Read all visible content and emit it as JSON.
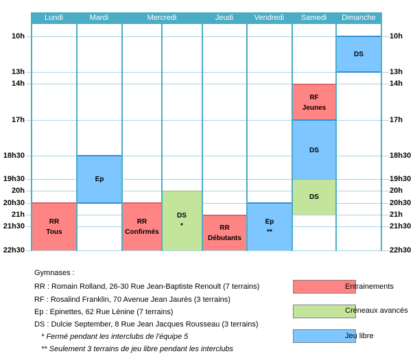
{
  "colors": {
    "header": "#4bacc6",
    "entrainements": "#ff8585",
    "creneaux": "#c3e59b",
    "jeu_libre": "#7dc6ff"
  },
  "days": [
    "Lundi",
    "Mardi",
    "Mercredi",
    "Jeudi",
    "Vendredi",
    "Samedi",
    "Dimanche"
  ],
  "times": [
    "10h",
    "13h",
    "14h",
    "17h",
    "18h30",
    "19h30",
    "20h",
    "20h30",
    "21h",
    "21h30",
    "22h30"
  ],
  "blocks": {
    "lundi_rr": {
      "line1": "RR",
      "line2": "Tous"
    },
    "mardi_ep": {
      "line1": "Ep"
    },
    "mercredi_rr": {
      "line1": "RR",
      "line2": "Confirmés"
    },
    "mercredi_ds": {
      "line1": "DS",
      "line2": "*"
    },
    "jeudi_rr": {
      "line1": "RR",
      "line2": "Débutants"
    },
    "vendredi_ep": {
      "line1": "Ep",
      "line2": "**"
    },
    "samedi_rf": {
      "line1": "RF",
      "line2": "Jeunes"
    },
    "samedi_ds_blue": {
      "line1": "DS"
    },
    "samedi_ds_green": {
      "line1": "DS"
    },
    "dimanche_ds": {
      "line1": "DS"
    }
  },
  "gymnases": {
    "title": "Gymnases :",
    "items": [
      "RR : Romain Rolland, 26-30 Rue Jean-Baptiste Renoult (7 terrains)",
      "RF : Rosalind Franklin, 70 Avenue Jean Jaurès (3 terrains)",
      "Ep : Epinettes, 62 Rue Lénine (7 terrains)",
      "DS : Dulcie September, 8 Rue Jean Jacques Rousseau (3 terrains)"
    ],
    "notes": [
      "* Fermé pendant les interclubs de l'équipe 5",
      "** Seulement 3 terrains de jeu libre pendant les interclubs"
    ]
  },
  "legend": [
    {
      "label": "Entrainements",
      "color": "#ff8585"
    },
    {
      "label": "Créneaux avancés",
      "color": "#c3e59b"
    },
    {
      "label": "Jeu libre",
      "color": "#7dc6ff"
    }
  ]
}
